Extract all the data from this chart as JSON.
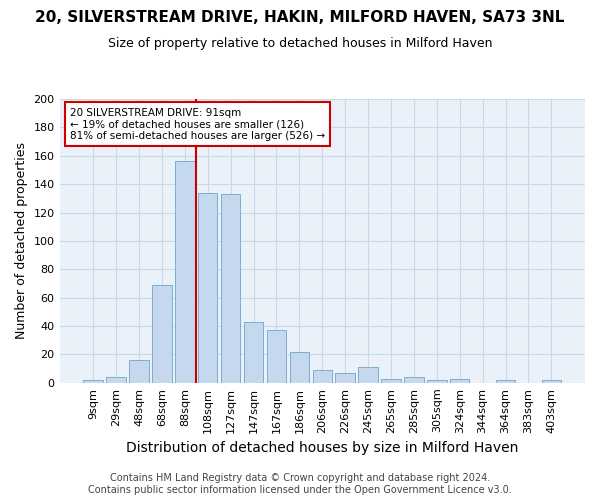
{
  "title": "20, SILVERSTREAM DRIVE, HAKIN, MILFORD HAVEN, SA73 3NL",
  "subtitle": "Size of property relative to detached houses in Milford Haven",
  "xlabel": "Distribution of detached houses by size in Milford Haven",
  "ylabel": "Number of detached properties",
  "footer_line1": "Contains HM Land Registry data © Crown copyright and database right 2024.",
  "footer_line2": "Contains public sector information licensed under the Open Government Licence v3.0.",
  "bar_labels": [
    "9sqm",
    "29sqm",
    "48sqm",
    "68sqm",
    "88sqm",
    "108sqm",
    "127sqm",
    "147sqm",
    "167sqm",
    "186sqm",
    "206sqm",
    "226sqm",
    "245sqm",
    "265sqm",
    "285sqm",
    "305sqm",
    "324sqm",
    "344sqm",
    "364sqm",
    "383sqm",
    "403sqm"
  ],
  "bar_values": [
    2,
    4,
    16,
    69,
    156,
    134,
    133,
    43,
    37,
    22,
    9,
    7,
    11,
    3,
    4,
    2,
    3,
    0,
    2,
    0,
    2
  ],
  "bar_color": "#c5d8ee",
  "bar_edge_color": "#7aaed4",
  "grid_color": "#c8d8ea",
  "bg_color": "#eaf1f8",
  "annotation_line1": "20 SILVERSTREAM DRIVE: 91sqm",
  "annotation_line2": "← 19% of detached houses are smaller (126)",
  "annotation_line3": "81% of semi-detached houses are larger (526) →",
  "annotation_box_facecolor": "#ffffff",
  "annotation_box_edgecolor": "#cc0000",
  "vline_color": "#cc0000",
  "vline_xindex": 4,
  "ylim_max": 200,
  "yticks": [
    0,
    20,
    40,
    60,
    80,
    100,
    120,
    140,
    160,
    180,
    200
  ],
  "title_fontsize": 11,
  "subtitle_fontsize": 9,
  "xlabel_fontsize": 10,
  "ylabel_fontsize": 9,
  "tick_fontsize": 8,
  "footer_fontsize": 7
}
